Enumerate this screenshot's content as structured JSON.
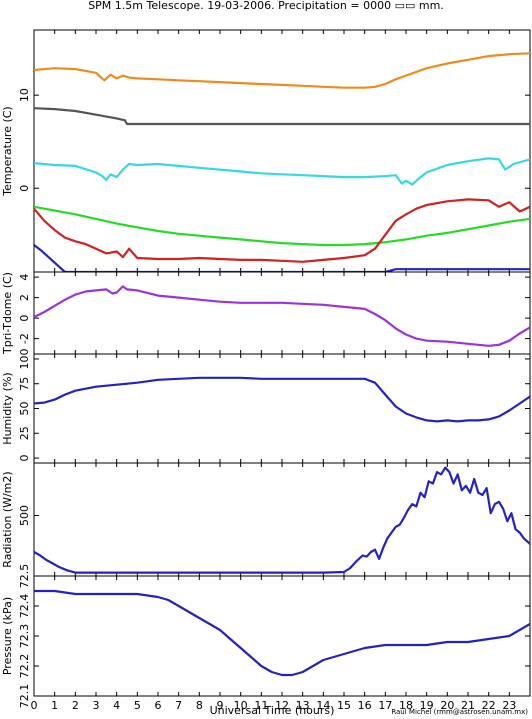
{
  "title": "SPM 1.5m Telescope. 19-03-2006. Precipitation = 0000",
  "title_box": "▭▭",
  "title_unit": "mm.",
  "xlabel": "Universal Time (hours)",
  "credit": "Raul Michel (rmm@astrosen.unam.mx)",
  "colors": {
    "orange": "#f08a1a",
    "gray": "#555555",
    "cyan": "#37d8e6",
    "red": "#d42020",
    "green": "#22dd22",
    "blue": "#2222c8",
    "purple": "#9933dd"
  },
  "chart_data": [
    {
      "type": "line",
      "ylabel": "Temperature (C)",
      "xlim": [
        0,
        24
      ],
      "ylim": [
        -9,
        17
      ],
      "yticks": [
        0,
        10
      ],
      "xticks": [
        0,
        1,
        2,
        3,
        4,
        5,
        6,
        7,
        8,
        9,
        10,
        11,
        12,
        13,
        14,
        15,
        16,
        17,
        18,
        19,
        20,
        21,
        22,
        23
      ],
      "series": [
        {
          "color": "orange",
          "x": [
            0,
            1,
            2,
            3,
            3.4,
            3.7,
            4,
            4.3,
            4.6,
            5,
            6,
            7,
            8,
            9,
            10,
            11,
            12,
            13,
            14,
            15,
            16,
            16.5,
            17,
            17.5,
            18,
            18.5,
            19,
            20,
            21,
            22,
            23,
            24
          ],
          "y": [
            12.7,
            12.9,
            12.8,
            12.4,
            11.6,
            12.2,
            11.8,
            12.1,
            11.9,
            11.8,
            11.7,
            11.6,
            11.5,
            11.4,
            11.3,
            11.2,
            11.1,
            11.0,
            10.9,
            10.8,
            10.8,
            10.9,
            11.2,
            11.7,
            12.1,
            12.5,
            12.9,
            13.4,
            13.8,
            14.2,
            14.4,
            14.5
          ]
        },
        {
          "color": "gray",
          "x": [
            0,
            1,
            2,
            3,
            3.5,
            4,
            4.4,
            4.5,
            5,
            10,
            15,
            20,
            24
          ],
          "y": [
            8.6,
            8.5,
            8.3,
            7.9,
            7.7,
            7.5,
            7.3,
            6.9,
            6.9,
            6.9,
            6.9,
            6.9,
            6.9
          ]
        },
        {
          "color": "cyan",
          "x": [
            0,
            1,
            2,
            3,
            3.3,
            3.5,
            3.7,
            4,
            4.3,
            4.6,
            5,
            6,
            7,
            8,
            9,
            10,
            11,
            12,
            13,
            14,
            15,
            16,
            17,
            17.5,
            17.8,
            18,
            18.3,
            18.6,
            19,
            19.5,
            20,
            21,
            22,
            22.5,
            22.8,
            23.2,
            24
          ],
          "y": [
            2.7,
            2.5,
            2.4,
            1.7,
            1.3,
            0.9,
            1.5,
            1.2,
            2.0,
            2.6,
            2.5,
            2.6,
            2.4,
            2.2,
            2.0,
            1.8,
            1.6,
            1.5,
            1.4,
            1.3,
            1.2,
            1.2,
            1.3,
            1.4,
            0.5,
            0.8,
            0.4,
            1.0,
            1.7,
            2.1,
            2.5,
            2.9,
            3.2,
            3.1,
            2.0,
            2.6,
            3.1
          ]
        },
        {
          "color": "green",
          "x": [
            0,
            1,
            2,
            3,
            4,
            5,
            6,
            7,
            8,
            9,
            10,
            11,
            12,
            13,
            14,
            15,
            16,
            17,
            18,
            19,
            20,
            21,
            22,
            23,
            24
          ],
          "y": [
            -2.0,
            -2.4,
            -2.8,
            -3.3,
            -3.8,
            -4.2,
            -4.6,
            -4.9,
            -5.1,
            -5.3,
            -5.5,
            -5.7,
            -5.9,
            -6.0,
            -6.1,
            -6.1,
            -6.0,
            -5.8,
            -5.5,
            -5.1,
            -4.8,
            -4.4,
            -4.0,
            -3.6,
            -3.3
          ]
        },
        {
          "color": "red",
          "x": [
            0,
            0.5,
            1,
            1.5,
            2,
            2.5,
            3,
            3.5,
            4,
            4.3,
            4.6,
            5,
            6,
            7,
            8,
            9,
            10,
            11,
            12,
            13,
            14,
            15,
            16,
            16.5,
            17,
            17.5,
            18,
            18.5,
            19,
            20,
            21,
            22,
            22.5,
            23,
            23.5,
            24
          ],
          "y": [
            -2.2,
            -3.5,
            -4.5,
            -5.3,
            -5.7,
            -6.0,
            -6.5,
            -7.0,
            -6.8,
            -7.4,
            -6.5,
            -7.5,
            -7.6,
            -7.6,
            -7.5,
            -7.6,
            -7.7,
            -7.7,
            -7.8,
            -7.9,
            -7.7,
            -7.5,
            -7.2,
            -6.5,
            -5.0,
            -3.5,
            -2.8,
            -2.2,
            -1.8,
            -1.4,
            -1.2,
            -1.3,
            -2.0,
            -1.5,
            -2.5,
            -2.0
          ]
        },
        {
          "color": "blue",
          "x": [
            0,
            0.3,
            0.6,
            0.9,
            1.2,
            1.5,
            17,
            17.5,
            18,
            20,
            24
          ],
          "y": [
            -6.1,
            -6.6,
            -7.2,
            -7.8,
            -8.4,
            -9.0,
            -9.0,
            -8.7,
            -8.7,
            -8.7,
            -8.7
          ]
        }
      ]
    },
    {
      "type": "line",
      "ylabel": "Tpri-Tdome (C)",
      "xlim": [
        0,
        24
      ],
      "ylim": [
        -3.5,
        4.5
      ],
      "yticks": [
        -2,
        0,
        2,
        4
      ],
      "xticks": [
        0,
        1,
        2,
        3,
        4,
        5,
        6,
        7,
        8,
        9,
        10,
        11,
        12,
        13,
        14,
        15,
        16,
        17,
        18,
        19,
        20,
        21,
        22,
        23
      ],
      "series": [
        {
          "color": "purple",
          "x": [
            0,
            0.5,
            1,
            1.5,
            2,
            2.5,
            3,
            3.5,
            3.8,
            4,
            4.3,
            4.5,
            5,
            6,
            7,
            8,
            9,
            10,
            11,
            12,
            13,
            14,
            15,
            16,
            16.5,
            17,
            17.5,
            18,
            18.5,
            19,
            20,
            21,
            22,
            22.5,
            23,
            23.5,
            24
          ],
          "y": [
            0.1,
            0.6,
            1.2,
            1.8,
            2.3,
            2.6,
            2.7,
            2.8,
            2.4,
            2.5,
            3.1,
            2.8,
            2.7,
            2.2,
            2.0,
            1.8,
            1.6,
            1.5,
            1.5,
            1.5,
            1.4,
            1.3,
            1.1,
            0.9,
            0.4,
            -0.2,
            -1.0,
            -1.6,
            -2.0,
            -2.2,
            -2.3,
            -2.5,
            -2.7,
            -2.6,
            -2.2,
            -1.5,
            -0.9
          ]
        }
      ]
    },
    {
      "type": "line",
      "ylabel": "Humidity (%)",
      "xlim": [
        0,
        24
      ],
      "ylim": [
        -5,
        105
      ],
      "yticks": [
        0,
        25,
        50,
        75,
        100
      ],
      "xticks": [
        0,
        1,
        2,
        3,
        4,
        5,
        6,
        7,
        8,
        9,
        10,
        11,
        12,
        13,
        14,
        15,
        16,
        17,
        18,
        19,
        20,
        21,
        22,
        23
      ],
      "series": [
        {
          "color": "blue",
          "x": [
            0,
            0.5,
            1,
            1.5,
            2,
            3,
            4,
            5,
            6,
            7,
            8,
            9,
            10,
            11,
            12,
            13,
            14,
            15,
            16,
            16.5,
            17,
            17.5,
            18,
            18.5,
            19,
            19.5,
            20,
            20.5,
            21,
            21.5,
            22,
            22.5,
            23,
            23.5,
            24
          ],
          "y": [
            55,
            56,
            59,
            64,
            68,
            72,
            74,
            76,
            79,
            80,
            81,
            81,
            81,
            80,
            80,
            80,
            80,
            80,
            80,
            76,
            64,
            52,
            45,
            41,
            38,
            37,
            38,
            37,
            38,
            38,
            39,
            42,
            48,
            55,
            62
          ]
        }
      ]
    },
    {
      "type": "line",
      "ylabel": "Radiation (W/m2)",
      "xlim": [
        0,
        24
      ],
      "ylim": [
        -30,
        960
      ],
      "yticks": [
        500
      ],
      "xticks": [
        0,
        1,
        2,
        3,
        4,
        5,
        6,
        7,
        8,
        9,
        10,
        11,
        12,
        13,
        14,
        15,
        16,
        17,
        18,
        19,
        20,
        21,
        22,
        23
      ],
      "series": [
        {
          "color": "blue",
          "x": [
            0,
            0.3,
            0.6,
            0.9,
            1.2,
            1.6,
            2,
            5,
            10,
            14,
            15,
            15.3,
            15.6,
            15.9,
            16.1,
            16.3,
            16.5,
            16.7,
            16.9,
            17.1,
            17.3,
            17.5,
            17.7,
            17.9,
            18.1,
            18.3,
            18.5,
            18.7,
            18.9,
            19.1,
            19.3,
            19.5,
            19.7,
            19.9,
            20.1,
            20.3,
            20.5,
            20.7,
            20.9,
            21.1,
            21.3,
            21.5,
            21.7,
            21.9,
            22.1,
            22.3,
            22.5,
            22.7,
            22.9,
            23.1,
            23.3,
            23.5,
            23.7,
            24
          ],
          "y": [
            180,
            150,
            110,
            80,
            50,
            20,
            0,
            0,
            0,
            0,
            5,
            40,
            100,
            150,
            140,
            180,
            200,
            120,
            220,
            300,
            350,
            400,
            420,
            480,
            550,
            600,
            580,
            700,
            660,
            800,
            780,
            880,
            860,
            920,
            880,
            780,
            860,
            720,
            760,
            700,
            820,
            700,
            680,
            740,
            520,
            600,
            620,
            560,
            450,
            520,
            380,
            350,
            300,
            250
          ]
        }
      ]
    },
    {
      "type": "line",
      "ylabel": "Pressure (kPa)",
      "xlim": [
        0,
        24
      ],
      "ylim": [
        72.1,
        72.5
      ],
      "yticks": [
        72.1,
        72.2,
        72.3,
        72.4,
        72.5
      ],
      "yticklabels": [
        "72.1",
        "72.2",
        "72.3",
        "72.4",
        "72.5"
      ],
      "xticks": [
        0,
        1,
        2,
        3,
        4,
        5,
        6,
        7,
        8,
        9,
        10,
        11,
        12,
        13,
        14,
        15,
        16,
        17,
        18,
        19,
        20,
        21,
        22,
        23
      ],
      "series": [
        {
          "color": "blue",
          "x": [
            0,
            1,
            2,
            3,
            4,
            5,
            6,
            6.5,
            7,
            7.5,
            8,
            8.5,
            9,
            9.5,
            10,
            10.5,
            11,
            11.5,
            12,
            12.5,
            13,
            13.5,
            14,
            14.5,
            15,
            15.5,
            16,
            17,
            18,
            19,
            20,
            21,
            22,
            23,
            24
          ],
          "y": [
            72.45,
            72.45,
            72.44,
            72.44,
            72.44,
            72.44,
            72.43,
            72.42,
            72.4,
            72.38,
            72.36,
            72.34,
            72.32,
            72.29,
            72.26,
            72.23,
            72.2,
            72.18,
            72.17,
            72.17,
            72.18,
            72.2,
            72.22,
            72.23,
            72.24,
            72.25,
            72.26,
            72.27,
            72.27,
            72.27,
            72.28,
            72.28,
            72.29,
            72.3,
            72.34
          ]
        }
      ]
    }
  ]
}
